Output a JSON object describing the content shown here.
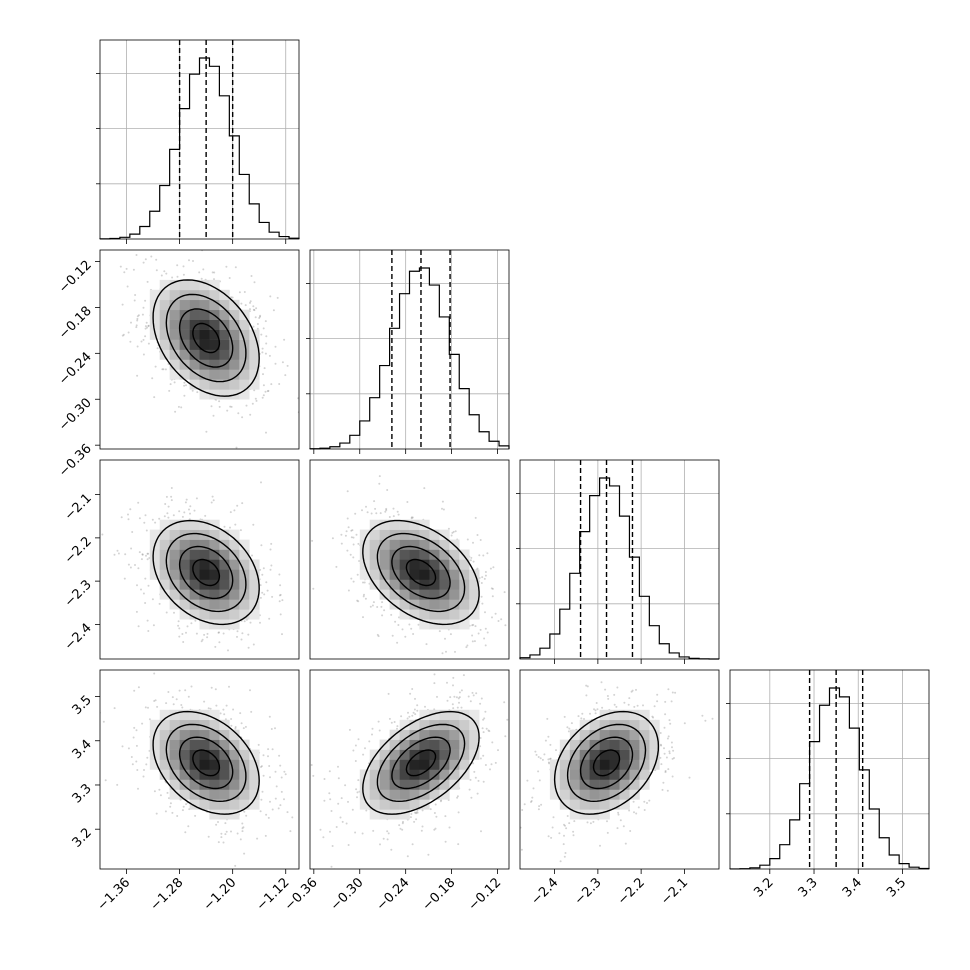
{
  "chart_data": {
    "type": "corner",
    "title": "",
    "parameters": [
      {
        "xlim": [
          -1.4,
          -1.1
        ],
        "center": -1.24,
        "sigma": 0.04,
        "quantiles": [
          -1.28,
          -1.24,
          -1.2
        ],
        "ticks": [
          -1.36,
          -1.28,
          -1.2,
          -1.12
        ],
        "tick_labels": [
          "−1.36",
          "−1.28",
          "−1.20",
          "−1.12"
        ]
      },
      {
        "xlim": [
          -0.365,
          -0.105
        ],
        "center": -0.22,
        "sigma": 0.038,
        "quantiles": [
          -0.258,
          -0.22,
          -0.182
        ],
        "ticks": [
          -0.36,
          -0.3,
          -0.24,
          -0.18,
          -0.12
        ],
        "tick_labels": [
          "−0.36",
          "−0.30",
          "−0.24",
          "−0.18",
          "−0.12"
        ]
      },
      {
        "xlim": [
          -2.48,
          -2.02
        ],
        "center": -2.28,
        "sigma": 0.06,
        "quantiles": [
          -2.34,
          -2.28,
          -2.22
        ],
        "ticks": [
          -2.4,
          -2.3,
          -2.2,
          -2.1
        ],
        "tick_labels": [
          "−2.4",
          "−2.3",
          "−2.2",
          "−2.1"
        ]
      },
      {
        "xlim": [
          3.11,
          3.56
        ],
        "center": 3.35,
        "sigma": 0.058,
        "quantiles": [
          3.29,
          3.35,
          3.41
        ],
        "ticks": [
          3.2,
          3.3,
          3.4,
          3.5
        ],
        "tick_labels": [
          "3.2",
          "3.3",
          "3.4",
          "3.5"
        ]
      }
    ],
    "correlations": [
      {
        "pair": [
          0,
          1
        ],
        "rho": -0.35
      },
      {
        "pair": [
          0,
          2
        ],
        "rho": -0.3
      },
      {
        "pair": [
          1,
          2
        ],
        "rho": -0.4
      },
      {
        "pair": [
          0,
          3
        ],
        "rho": -0.35
      },
      {
        "pair": [
          1,
          3
        ],
        "rho": 0.5
      },
      {
        "pair": [
          2,
          3
        ],
        "rho": 0.32
      }
    ],
    "histogram": {
      "bins": 20,
      "style": "step",
      "grid": true,
      "quantile_line_style": "dashed"
    },
    "two_d": {
      "contour_levels": 4,
      "density_shading": "grayscale",
      "scatter_points": true
    },
    "colors": {
      "lines": "#000000",
      "points": "#808080",
      "grid": "#b0b0b0"
    }
  }
}
